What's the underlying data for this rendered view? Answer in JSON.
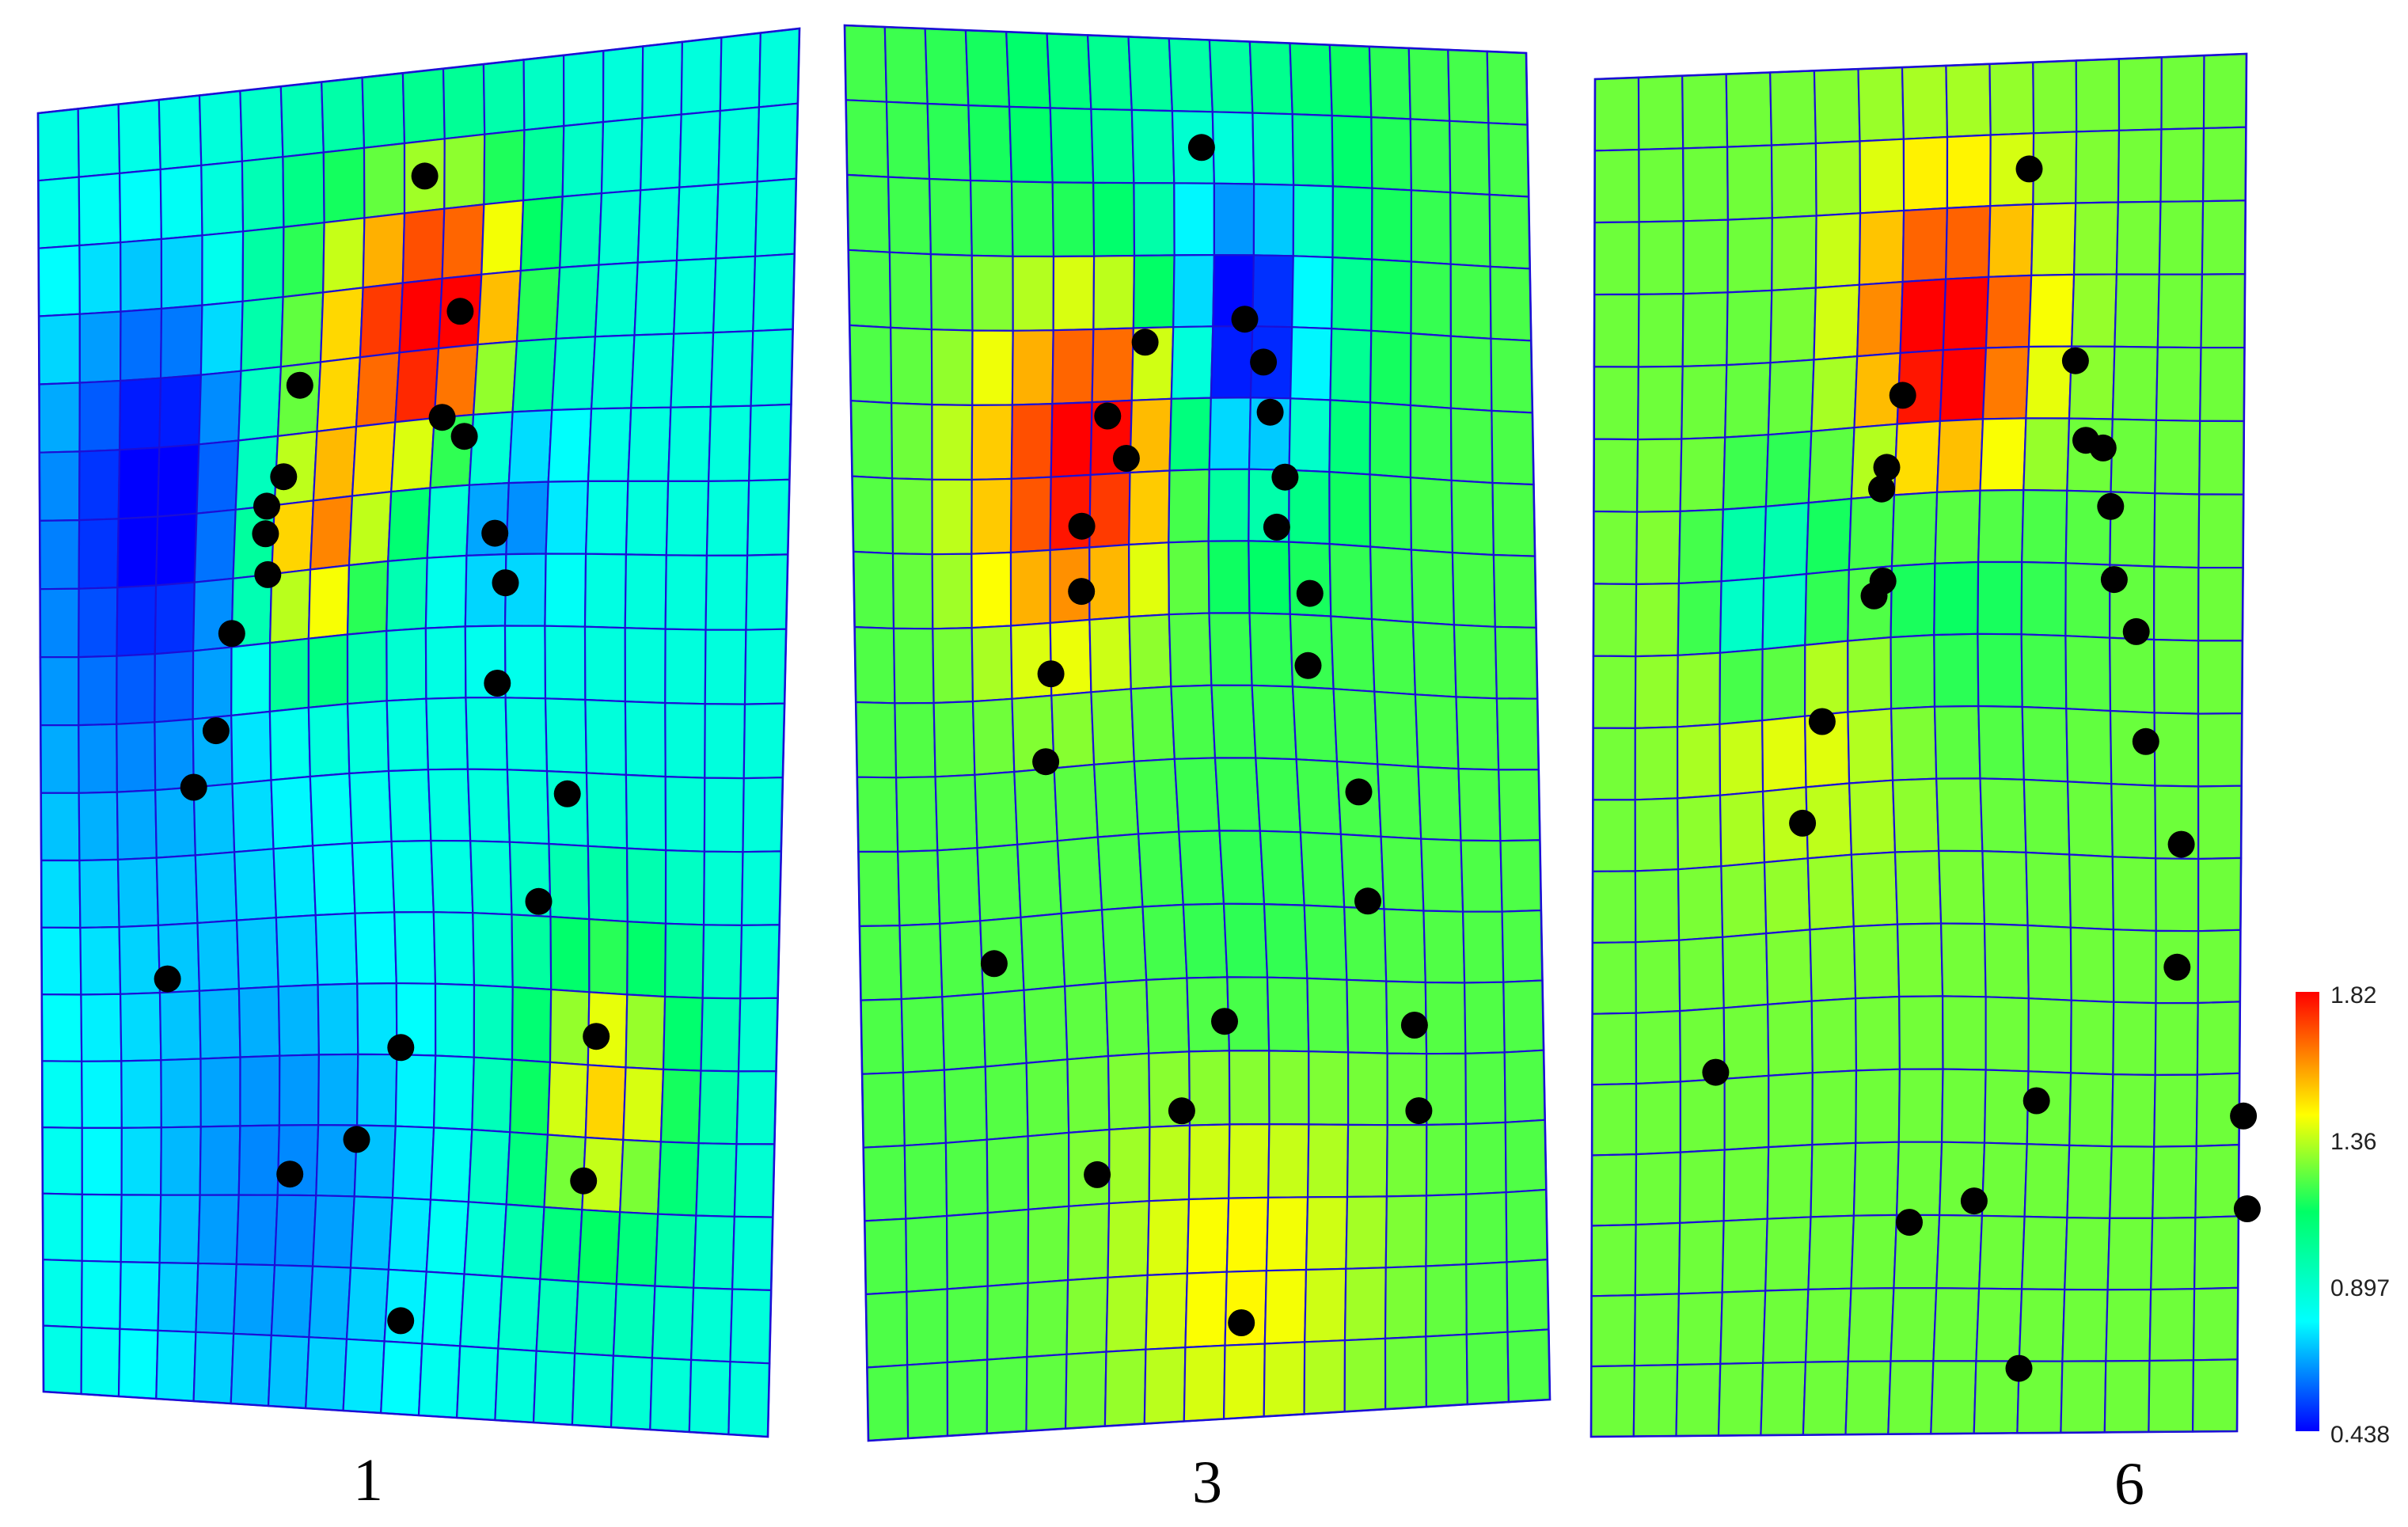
{
  "panels": [
    {
      "label": "1",
      "cols": 19,
      "rows": 19,
      "base": 0.86,
      "hotspots": [
        {
          "r": 3.6,
          "c": 10.2,
          "v": 1.82,
          "s": 1.6
        },
        {
          "r": 3.7,
          "c": 7.2,
          "v": 1.3,
          "s": 1.8
        },
        {
          "r": 6.8,
          "c": 7.0,
          "v": 1.6,
          "s": 1.2
        },
        {
          "r": 14.4,
          "c": 14.5,
          "v": 1.5,
          "s": 1.6
        },
        {
          "r": 5.2,
          "c": 3.5,
          "v": 0.48,
          "s": 2.0
        },
        {
          "r": 6.0,
          "c": 11.8,
          "v": 0.48,
          "s": 1.2
        },
        {
          "r": 16.0,
          "c": 6.0,
          "v": 0.62,
          "s": 2.8
        },
        {
          "r": 8.5,
          "c": 2.0,
          "v": 0.65,
          "s": 3.0
        }
      ],
      "dots": [
        [
          9.5,
          1.5
        ],
        [
          10.5,
          3.5
        ],
        [
          6.5,
          4.3
        ],
        [
          10.2,
          5.0
        ],
        [
          10.8,
          5.3
        ],
        [
          6.2,
          5.6
        ],
        [
          5.8,
          6.0
        ],
        [
          5.8,
          6.4
        ],
        [
          11.7,
          6.7
        ],
        [
          5.9,
          7.0
        ],
        [
          12.0,
          7.4
        ],
        [
          5.0,
          7.8
        ],
        [
          11.8,
          8.8
        ],
        [
          4.6,
          9.2
        ],
        [
          4.0,
          10.0
        ],
        [
          13.5,
          10.3
        ],
        [
          12.7,
          11.8
        ],
        [
          3.2,
          12.8
        ],
        [
          9.1,
          13.9
        ],
        [
          14.2,
          13.6
        ],
        [
          8.0,
          15.2
        ],
        [
          6.3,
          15.7
        ],
        [
          14.0,
          15.6
        ],
        [
          9.4,
          17.7
        ]
      ]
    },
    {
      "label": "3",
      "cols": 17,
      "rows": 19,
      "base": 1.22,
      "hotspots": [
        {
          "r": 5.9,
          "c": 5.4,
          "v": 1.82,
          "s": 1.8
        },
        {
          "r": 4.8,
          "c": 7.3,
          "v": 1.62,
          "s": 1.4
        },
        {
          "r": 16.2,
          "c": 9.4,
          "v": 1.52,
          "s": 2.4
        },
        {
          "r": 4.2,
          "c": 9.7,
          "v": 0.5,
          "s": 1.5
        },
        {
          "r": 14.0,
          "c": 9.5,
          "v": 1.05,
          "s": 2.0
        },
        {
          "r": 2.5,
          "c": 8.0,
          "v": 0.95,
          "s": 3.0
        }
      ],
      "dots": [
        [
          8.7,
          1.5
        ],
        [
          7.3,
          4.2
        ],
        [
          9.8,
          3.9
        ],
        [
          10.3,
          4.5
        ],
        [
          10.5,
          5.2
        ],
        [
          6.4,
          5.2
        ],
        [
          6.9,
          5.8
        ],
        [
          10.9,
          6.1
        ],
        [
          5.8,
          6.7
        ],
        [
          10.7,
          6.8
        ],
        [
          5.8,
          7.6
        ],
        [
          11.5,
          7.7
        ],
        [
          5.0,
          8.7
        ],
        [
          11.4,
          8.7
        ],
        [
          4.8,
          9.9
        ],
        [
          12.5,
          10.4
        ],
        [
          12.6,
          11.9
        ],
        [
          3.3,
          12.6
        ],
        [
          8.9,
          13.6
        ],
        [
          13.7,
          13.6
        ],
        [
          7.8,
          14.8
        ],
        [
          13.8,
          14.8
        ],
        [
          5.7,
          15.6
        ],
        [
          9.4,
          17.7
        ]
      ]
    },
    {
      "label": "6",
      "cols": 15,
      "rows": 19,
      "base": 1.26,
      "hotspots": [
        {
          "r": 4.3,
          "c": 8.2,
          "v": 1.82,
          "s": 1.4
        },
        {
          "r": 3.5,
          "c": 7.5,
          "v": 1.5,
          "s": 1.6
        },
        {
          "r": 7.5,
          "c": 4.1,
          "v": 1.62,
          "s": 1.4
        },
        {
          "r": 8.5,
          "c": 6.0,
          "v": 1.45,
          "s": 2.0
        },
        {
          "r": 7.3,
          "c": 4.0,
          "v": 0.46,
          "s": 1.0
        },
        {
          "r": 6.0,
          "c": 7.4,
          "v": 0.8,
          "s": 2.2
        },
        {
          "r": 4.5,
          "c": 8.0,
          "v": 1.45,
          "s": 2.2
        }
      ],
      "dots": [
        [
          9.9,
          1.5
        ],
        [
          7.1,
          4.6
        ],
        [
          11.1,
          4.2
        ],
        [
          11.4,
          5.3
        ],
        [
          11.8,
          5.4
        ],
        [
          6.8,
          5.6
        ],
        [
          6.7,
          5.9
        ],
        [
          12.0,
          6.2
        ],
        [
          6.8,
          7.2
        ],
        [
          6.6,
          7.4
        ],
        [
          12.1,
          7.2
        ],
        [
          12.6,
          7.9
        ],
        [
          5.4,
          9.1
        ],
        [
          12.8,
          9.4
        ],
        [
          4.9,
          10.5
        ],
        [
          13.6,
          10.8
        ],
        [
          13.5,
          12.5
        ],
        [
          2.8,
          13.9
        ],
        [
          10.2,
          14.4
        ],
        [
          15.1,
          14.6
        ],
        [
          8.8,
          15.8
        ],
        [
          7.3,
          16.1
        ],
        [
          15.2,
          15.9
        ],
        [
          10.0,
          18.1
        ]
      ]
    }
  ],
  "colorbar": {
    "ticks": [
      "1.82",
      "1.36",
      "0.897",
      "0.438"
    ],
    "min": 0.438,
    "max": 1.82
  }
}
